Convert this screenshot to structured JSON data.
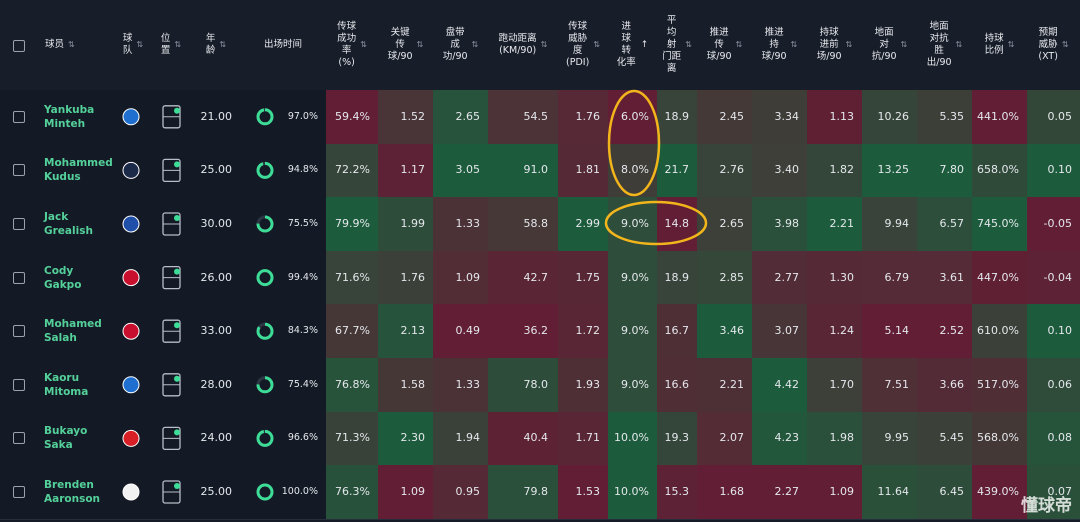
{
  "table": {
    "columns": [
      "球员",
      "球\n队",
      "位\n置",
      "年\n龄",
      "出场时间",
      "传球\n成功\n率\n(%)",
      "关键\n传\n球/90",
      "盘带\n成\n功/90",
      "跑动距离\n(KM/90)",
      "传球\n威胁\n度\n(PDI)",
      "进\n球\n转\n化率",
      "平\n均\n射\n门距\n离",
      "推进\n传\n球/90",
      "推进\n持\n球/90",
      "持球\n进前\n场/90",
      "地面\n对\n抗/90",
      "地面\n对抗\n胜\n出/90",
      "持球\n比例",
      "预期\n威胁\n(XT)"
    ],
    "rows": [
      {
        "player": "Yankuba\nMinteh",
        "age": "21.00",
        "minutes": "97.0%",
        "stats": [
          "59.4%",
          "1.52",
          "2.65",
          "54.5",
          "1.76",
          "6.0%",
          "18.9",
          "2.45",
          "3.34",
          "1.13",
          "10.26",
          "5.35",
          "441.0%",
          "0.05"
        ]
      },
      {
        "player": "Mohammed\nKudus",
        "age": "25.00",
        "minutes": "94.8%",
        "stats": [
          "72.2%",
          "1.17",
          "3.05",
          "91.0",
          "1.81",
          "8.0%",
          "21.7",
          "2.76",
          "3.40",
          "1.82",
          "13.25",
          "7.80",
          "658.0%",
          "0.10"
        ]
      },
      {
        "player": "Jack\nGrealish",
        "age": "30.00",
        "minutes": "75.5%",
        "stats": [
          "79.9%",
          "1.99",
          "1.33",
          "58.8",
          "2.99",
          "9.0%",
          "14.8",
          "2.65",
          "3.98",
          "2.21",
          "9.94",
          "6.57",
          "745.0%",
          "-0.05"
        ]
      },
      {
        "player": "Cody\nGakpo",
        "age": "26.00",
        "minutes": "99.4%",
        "stats": [
          "71.6%",
          "1.76",
          "1.09",
          "42.7",
          "1.75",
          "9.0%",
          "18.9",
          "2.85",
          "2.77",
          "1.30",
          "6.79",
          "3.61",
          "447.0%",
          "-0.04"
        ]
      },
      {
        "player": "Mohamed\nSalah",
        "age": "33.00",
        "minutes": "84.3%",
        "stats": [
          "67.7%",
          "2.13",
          "0.49",
          "36.2",
          "1.72",
          "9.0%",
          "16.7",
          "3.46",
          "3.07",
          "1.24",
          "5.14",
          "2.52",
          "610.0%",
          "0.10"
        ]
      },
      {
        "player": "Kaoru\nMitoma",
        "age": "28.00",
        "minutes": "75.4%",
        "stats": [
          "76.8%",
          "1.58",
          "1.33",
          "78.0",
          "1.93",
          "9.0%",
          "16.6",
          "2.21",
          "4.42",
          "1.70",
          "7.51",
          "3.66",
          "517.0%",
          "0.06"
        ]
      },
      {
        "player": "Bukayo\nSaka",
        "age": "24.00",
        "minutes": "96.6%",
        "stats": [
          "71.3%",
          "2.30",
          "1.94",
          "40.4",
          "1.71",
          "10.0%",
          "19.3",
          "2.07",
          "4.23",
          "1.98",
          "9.95",
          "5.45",
          "568.0%",
          "0.08"
        ]
      },
      {
        "player": "Brenden\nAaronson",
        "age": "25.00",
        "minutes": "100.0%",
        "stats": [
          "76.3%",
          "1.09",
          "0.95",
          "79.8",
          "1.53",
          "10.0%",
          "15.3",
          "1.68",
          "2.27",
          "1.09",
          "11.64",
          "6.45",
          "439.0%",
          "0.07"
        ]
      }
    ]
  },
  "watermark": "懂球帝"
}
